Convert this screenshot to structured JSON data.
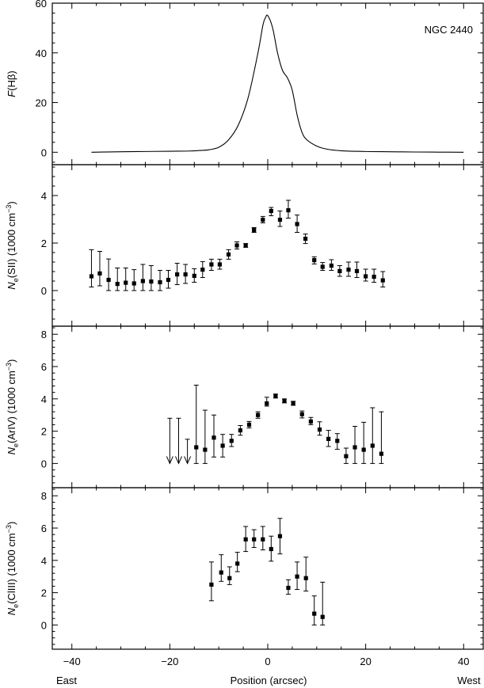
{
  "chart_data": [
    {
      "type": "line",
      "object_label": "NGC 2440",
      "ylabel_main": "F",
      "ylabel_sub": "(Hβ)",
      "ylim": [
        -5,
        60
      ],
      "yticks": [
        0,
        20,
        40,
        60
      ],
      "x": [
        -36,
        -30,
        -25,
        -20,
        -16,
        -14,
        -12,
        -10,
        -8,
        -6,
        -4,
        -2,
        -1,
        -0.5,
        0,
        1,
        2,
        3,
        4,
        5,
        6,
        7,
        8,
        10,
        12,
        15,
        20,
        25,
        30,
        35,
        40
      ],
      "y": [
        0,
        0.2,
        0.3,
        0.4,
        0.5,
        0.7,
        1,
        2,
        5,
        11,
        22,
        40,
        51,
        54,
        55,
        50,
        40,
        33,
        30,
        25,
        15,
        8,
        5,
        2.5,
        1.3,
        0.6,
        0.3,
        0.2,
        0.1,
        0.05,
        0
      ]
    },
    {
      "type": "scatter",
      "ylabel_parts": [
        "N",
        "e",
        "(SII) (1000 cm",
        "−3",
        ")"
      ],
      "ylim": [
        -1.5,
        5.3
      ],
      "yticks": [
        0,
        2,
        4
      ],
      "points": [
        {
          "x": -36,
          "y": 0.6,
          "lo": 0.15,
          "hi": 1.72
        },
        {
          "x": -34.3,
          "y": 0.72,
          "lo": 0.2,
          "hi": 1.65
        },
        {
          "x": -32.5,
          "y": 0.45,
          "lo": 0.0,
          "hi": 1.33
        },
        {
          "x": -30.7,
          "y": 0.28,
          "lo": 0.0,
          "hi": 0.95
        },
        {
          "x": -29,
          "y": 0.33,
          "lo": 0.0,
          "hi": 0.95
        },
        {
          "x": -27.3,
          "y": 0.3,
          "lo": 0.0,
          "hi": 0.88
        },
        {
          "x": -25.5,
          "y": 0.4,
          "lo": 0.0,
          "hi": 1.1
        },
        {
          "x": -23.8,
          "y": 0.38,
          "lo": 0.0,
          "hi": 1.05
        },
        {
          "x": -22,
          "y": 0.35,
          "lo": 0.0,
          "hi": 0.85
        },
        {
          "x": -20.3,
          "y": 0.45,
          "lo": 0.1,
          "hi": 0.85
        },
        {
          "x": -18.5,
          "y": 0.68,
          "lo": 0.25,
          "hi": 1.15
        },
        {
          "x": -16.8,
          "y": 0.68,
          "lo": 0.3,
          "hi": 1.1
        },
        {
          "x": -15,
          "y": 0.62,
          "lo": 0.35,
          "hi": 0.92
        },
        {
          "x": -13.3,
          "y": 0.88,
          "lo": 0.55,
          "hi": 1.22
        },
        {
          "x": -11.5,
          "y": 1.1,
          "lo": 0.85,
          "hi": 1.32
        },
        {
          "x": -9.8,
          "y": 1.1,
          "lo": 0.9,
          "hi": 1.32
        },
        {
          "x": -8,
          "y": 1.52,
          "lo": 1.32,
          "hi": 1.72
        },
        {
          "x": -6.3,
          "y": 1.9,
          "lo": 1.75,
          "hi": 2.05
        },
        {
          "x": -4.5,
          "y": 1.9,
          "lo": 1.82,
          "hi": 1.98
        },
        {
          "x": -2.8,
          "y": 2.55,
          "lo": 2.45,
          "hi": 2.65
        },
        {
          "x": -1,
          "y": 2.98,
          "lo": 2.85,
          "hi": 3.12
        },
        {
          "x": 0.7,
          "y": 3.35,
          "lo": 3.15,
          "hi": 3.5
        },
        {
          "x": 2.5,
          "y": 2.98,
          "lo": 2.7,
          "hi": 3.35
        },
        {
          "x": 4.2,
          "y": 3.38,
          "lo": 3.05,
          "hi": 3.8
        },
        {
          "x": 6,
          "y": 2.8,
          "lo": 2.45,
          "hi": 3.18
        },
        {
          "x": 7.7,
          "y": 2.18,
          "lo": 1.98,
          "hi": 2.38
        },
        {
          "x": 9.5,
          "y": 1.28,
          "lo": 1.12,
          "hi": 1.42
        },
        {
          "x": 11.2,
          "y": 1.0,
          "lo": 0.85,
          "hi": 1.18
        },
        {
          "x": 13,
          "y": 1.05,
          "lo": 0.85,
          "hi": 1.3
        },
        {
          "x": 14.7,
          "y": 0.82,
          "lo": 0.6,
          "hi": 1.05
        },
        {
          "x": 16.5,
          "y": 0.88,
          "lo": 0.6,
          "hi": 1.2
        },
        {
          "x": 18.2,
          "y": 0.82,
          "lo": 0.55,
          "hi": 1.2
        },
        {
          "x": 20,
          "y": 0.6,
          "lo": 0.4,
          "hi": 0.9
        },
        {
          "x": 21.7,
          "y": 0.58,
          "lo": 0.35,
          "hi": 0.9
        },
        {
          "x": 23.5,
          "y": 0.43,
          "lo": 0.15,
          "hi": 0.8
        }
      ]
    },
    {
      "type": "scatter",
      "ylabel_parts": [
        "N",
        "e",
        "(ArIV) (1000 cm",
        "−3",
        ")"
      ],
      "ylim": [
        -1.5,
        8.5
      ],
      "yticks": [
        0,
        2,
        4,
        6,
        8
      ],
      "upper_limits": [
        {
          "x": -20,
          "y": 2.8
        },
        {
          "x": -18.2,
          "y": 2.8
        },
        {
          "x": -16.4,
          "y": 1.5
        }
      ],
      "points": [
        {
          "x": -14.6,
          "y": 1.0,
          "lo": 0.0,
          "hi": 4.85
        },
        {
          "x": -12.8,
          "y": 0.85,
          "lo": 0.0,
          "hi": 3.3
        },
        {
          "x": -11,
          "y": 1.6,
          "lo": 0.4,
          "hi": 3.0
        },
        {
          "x": -9.2,
          "y": 1.1,
          "lo": 0.4,
          "hi": 1.8
        },
        {
          "x": -7.4,
          "y": 1.4,
          "lo": 1.05,
          "hi": 1.8
        },
        {
          "x": -5.6,
          "y": 2.05,
          "lo": 1.75,
          "hi": 2.35
        },
        {
          "x": -3.8,
          "y": 2.4,
          "lo": 2.2,
          "hi": 2.6
        },
        {
          "x": -2,
          "y": 3.0,
          "lo": 2.8,
          "hi": 3.2
        },
        {
          "x": -0.2,
          "y": 3.72,
          "lo": 3.55,
          "hi": 4.1
        },
        {
          "x": 1.6,
          "y": 4.18,
          "lo": 4.05,
          "hi": 4.3
        },
        {
          "x": 3.4,
          "y": 3.88,
          "lo": 3.75,
          "hi": 4.0
        },
        {
          "x": 5.2,
          "y": 3.72,
          "lo": 3.6,
          "hi": 3.85
        },
        {
          "x": 7,
          "y": 3.05,
          "lo": 2.82,
          "hi": 3.25
        },
        {
          "x": 8.8,
          "y": 2.6,
          "lo": 2.4,
          "hi": 2.85
        },
        {
          "x": 10.6,
          "y": 2.1,
          "lo": 1.75,
          "hi": 2.58
        },
        {
          "x": 12.4,
          "y": 1.52,
          "lo": 1.05,
          "hi": 2.05
        },
        {
          "x": 14.2,
          "y": 1.4,
          "lo": 0.88,
          "hi": 1.85
        },
        {
          "x": 16,
          "y": 0.45,
          "lo": 0.0,
          "hi": 0.95
        },
        {
          "x": 17.8,
          "y": 1.0,
          "lo": 0.0,
          "hi": 2.3
        },
        {
          "x": 19.6,
          "y": 0.85,
          "lo": 0.0,
          "hi": 2.55
        },
        {
          "x": 21.4,
          "y": 1.1,
          "lo": 0.0,
          "hi": 3.45
        },
        {
          "x": 23.2,
          "y": 0.6,
          "lo": 0.0,
          "hi": 3.2
        }
      ]
    },
    {
      "type": "scatter",
      "ylabel_parts": [
        "N",
        "e",
        "(ClIII) (1000 cm",
        "−3",
        ")"
      ],
      "ylim": [
        -1.5,
        8.5
      ],
      "yticks": [
        0,
        2,
        4,
        6,
        8
      ],
      "xlabel": "Position (arcsec)",
      "xlim": [
        -44,
        44
      ],
      "xticks": [
        -40,
        -20,
        0,
        20,
        40
      ],
      "xtick_labels": [
        "−40",
        "−20",
        "0",
        "20",
        "40"
      ],
      "east_label": "East",
      "west_label": "West",
      "points": [
        {
          "x": -11.5,
          "y": 2.5,
          "lo": 1.5,
          "hi": 3.9
        },
        {
          "x": -9.5,
          "y": 3.25,
          "lo": 2.7,
          "hi": 4.35
        },
        {
          "x": -7.8,
          "y": 2.9,
          "lo": 2.5,
          "hi": 3.6
        },
        {
          "x": -6.2,
          "y": 3.8,
          "lo": 3.3,
          "hi": 4.5
        },
        {
          "x": -4.5,
          "y": 5.3,
          "lo": 4.55,
          "hi": 6.1
        },
        {
          "x": -2.8,
          "y": 5.3,
          "lo": 4.8,
          "hi": 5.9
        },
        {
          "x": -1,
          "y": 5.3,
          "lo": 4.65,
          "hi": 6.1
        },
        {
          "x": 0.7,
          "y": 4.7,
          "lo": 3.95,
          "hi": 5.5
        },
        {
          "x": 2.5,
          "y": 5.5,
          "lo": 4.4,
          "hi": 6.6
        },
        {
          "x": 4.2,
          "y": 2.3,
          "lo": 1.9,
          "hi": 2.8
        },
        {
          "x": 6,
          "y": 3.0,
          "lo": 2.2,
          "hi": 3.9
        },
        {
          "x": 7.8,
          "y": 2.9,
          "lo": 2.1,
          "hi": 4.2
        },
        {
          "x": 9.5,
          "y": 0.7,
          "lo": 0.0,
          "hi": 1.8
        },
        {
          "x": 11.2,
          "y": 0.5,
          "lo": 0.0,
          "hi": 2.65
        }
      ]
    }
  ]
}
